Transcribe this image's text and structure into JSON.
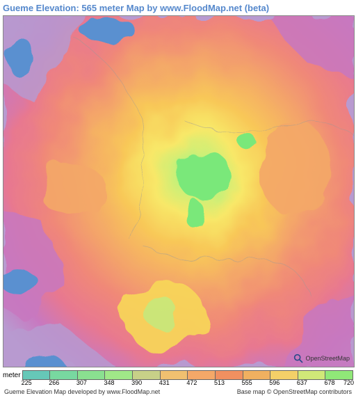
{
  "title": "Gueme Elevation: 565 meter Map by www.FloodMap.net (beta)",
  "map": {
    "type": "heatmap",
    "background_color": "#ffffff",
    "elevation_palette": [
      "#4a90d9",
      "#56c4a8",
      "#7ad67a",
      "#a8e089",
      "#b89ad0",
      "#c878c0",
      "#d56aa8",
      "#e87890",
      "#f08878",
      "#f4a868",
      "#f8c858",
      "#f8e868",
      "#c8f078",
      "#88e888"
    ],
    "osm_attribution": "OpenStreetMap"
  },
  "legend": {
    "unit_label": "meter",
    "swatches": [
      {
        "color": "#66c8b8",
        "value": 225
      },
      {
        "color": "#78d8a0",
        "value": 266
      },
      {
        "color": "#8ae090",
        "value": 307
      },
      {
        "color": "#a0e888",
        "value": 348
      },
      {
        "color": "#c8d088",
        "value": 390
      },
      {
        "color": "#f0c070",
        "value": 431
      },
      {
        "color": "#f4a868",
        "value": 472
      },
      {
        "color": "#f09060",
        "value": 513
      },
      {
        "color": "#f0b060",
        "value": 555
      },
      {
        "color": "#f4d068",
        "value": 596
      },
      {
        "color": "#d0e878",
        "value": 637
      },
      {
        "color": "#90e878",
        "value": 678
      }
    ],
    "final_value": 720
  },
  "footer": {
    "left": "Gueme Elevation Map developed by www.FloodMap.net",
    "right": "Base map © OpenStreetMap contributors"
  }
}
